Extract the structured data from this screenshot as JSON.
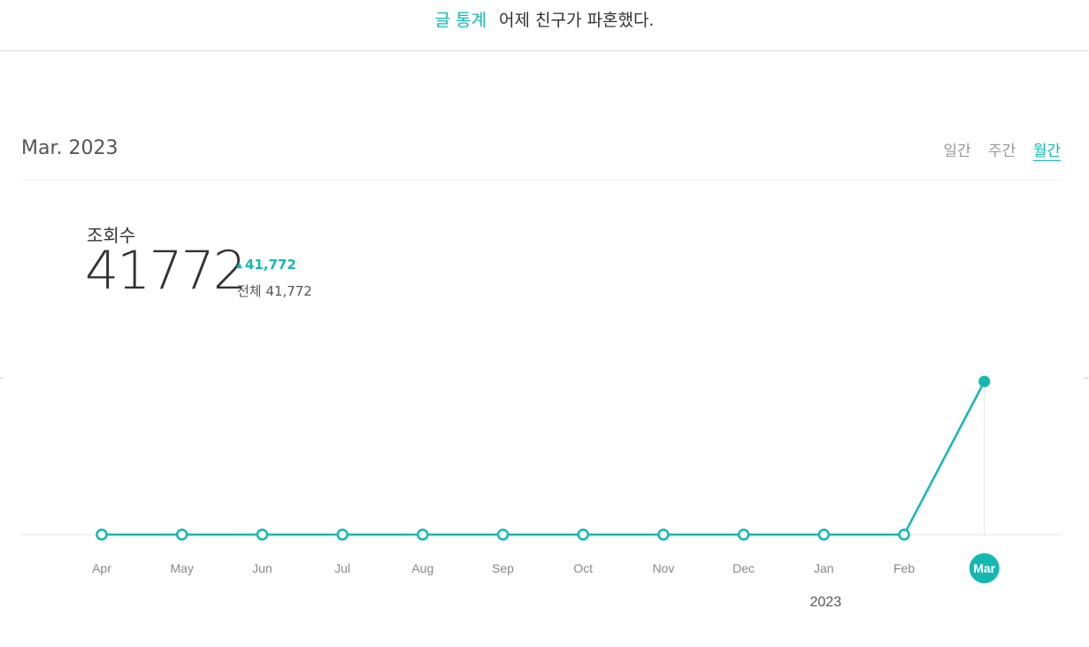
{
  "header": {
    "section": "글 통계",
    "post_title": "어제 친구가 파혼했다."
  },
  "period_label": "Mar. 2023",
  "tabs": [
    {
      "label": "일간",
      "active": false
    },
    {
      "label": "주간",
      "active": false
    },
    {
      "label": "월간",
      "active": true
    }
  ],
  "metric": {
    "label": "조회수",
    "value": "41772",
    "delta": "41,772",
    "total": "전체 41,772"
  },
  "colors": {
    "accent": "#14b8b1"
  },
  "chart_data": {
    "type": "line",
    "categories": [
      "Apr",
      "May",
      "Jun",
      "Jul",
      "Aug",
      "Sep",
      "Oct",
      "Nov",
      "Dec",
      "Jan",
      "Feb",
      "Mar"
    ],
    "values": [
      0,
      0,
      0,
      0,
      0,
      0,
      0,
      0,
      0,
      0,
      0,
      41772
    ],
    "year_label": "2023",
    "selected_index": 11,
    "ylim": [
      0,
      41772
    ]
  }
}
